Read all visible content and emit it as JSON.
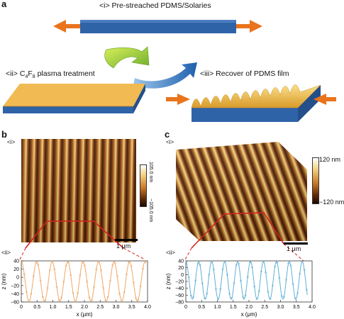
{
  "panel_a": {
    "letter": "a",
    "step1": "<i> Pre-streached PDMS/Solaries",
    "step2_prefix": "<ii> C",
    "step2_sub1": "4",
    "step2_mid": "F",
    "step2_sub2": "8",
    "step2_suffix": " plasma treatment",
    "step3": "<iii> Recover of PDMS film"
  },
  "panel_b": {
    "letter": "b",
    "tag_i": "<i>",
    "tag_ii": "<ii>",
    "cbar_top": "105.0 nm",
    "cbar_bottom": "−105.0 nm",
    "scale": "1 μm"
  },
  "panel_c": {
    "letter": "c",
    "tag_i": "<i>",
    "tag_ii": "<ii>",
    "cbar_top": "120 nm",
    "cbar_bottom": "−120 nm",
    "scale": "1 μm"
  },
  "chart_data": [
    {
      "type": "line",
      "panel": "b-ii",
      "xlabel": "x (μm)",
      "ylabel": "z (nm)",
      "xlim": [
        0,
        4.0
      ],
      "ylim": [
        -60,
        40
      ],
      "xticks": [
        "0",
        "0.5",
        "1.0",
        "1.5",
        "2.0",
        "2.5",
        "3.0",
        "3.5",
        "4.0"
      ],
      "yticks": [
        "40",
        "20",
        "0",
        "−20",
        "−40",
        "−60"
      ],
      "color": "#f0a868",
      "period": 0.49,
      "amplitude": 48,
      "offset": -10,
      "x_end": 3.95
    },
    {
      "type": "line",
      "panel": "c-ii",
      "xlabel": "x (μm)",
      "ylabel": "z (nm)",
      "xlim": [
        0,
        4.0
      ],
      "ylim": [
        -80,
        40
      ],
      "xticks": [
        "0",
        "0.5",
        "1.0",
        "1.5",
        "2.0",
        "2.5",
        "3.0",
        "3.5",
        "4.0"
      ],
      "yticks": [
        "40",
        "20",
        "0",
        "−20",
        "−40",
        "−60",
        "−80"
      ],
      "color": "#5fb0d6",
      "period": 0.41,
      "amplitude": 55,
      "offset": -17,
      "x_end": 3.85
    }
  ],
  "colors": {
    "blue_substrate": "#2f63a8",
    "gold_film": "#f1ba52",
    "arrow_orange": "#e9741c",
    "arrow_green": "#8cc63f",
    "arrow_blue": "#2a6db5"
  }
}
